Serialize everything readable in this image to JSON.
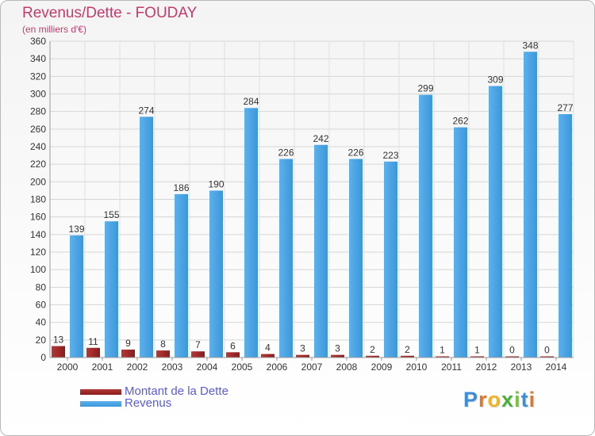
{
  "chart_data": {
    "type": "bar",
    "title": "Revenus/Dette - FOUDAY",
    "subtitle": "(en milliers d'€)",
    "categories": [
      "2000",
      "2001",
      "2002",
      "2003",
      "2004",
      "2005",
      "2006",
      "2007",
      "2008",
      "2009",
      "2010",
      "2011",
      "2012",
      "2013",
      "2014"
    ],
    "series": [
      {
        "name": "Montant de la Dette",
        "color": "#8b1a1a",
        "values": [
          13,
          11,
          9,
          8,
          7,
          6,
          4,
          3,
          3,
          2,
          2,
          1,
          1,
          0,
          0
        ]
      },
      {
        "name": "Revenus",
        "color": "#3a97dc",
        "values": [
          139,
          155,
          274,
          186,
          190,
          284,
          226,
          242,
          226,
          223,
          299,
          262,
          309,
          348,
          277
        ]
      }
    ],
    "ylim": [
      0,
      360
    ],
    "yticks": [
      0,
      20,
      40,
      60,
      80,
      100,
      120,
      140,
      160,
      180,
      200,
      220,
      240,
      260,
      280,
      300,
      320,
      340,
      360
    ],
    "grid": true,
    "legend_position": "bottom-left"
  },
  "logo": {
    "text": "Proxiti",
    "letters": [
      "P",
      "r",
      "o",
      "x",
      "i",
      "t",
      "i"
    ]
  }
}
